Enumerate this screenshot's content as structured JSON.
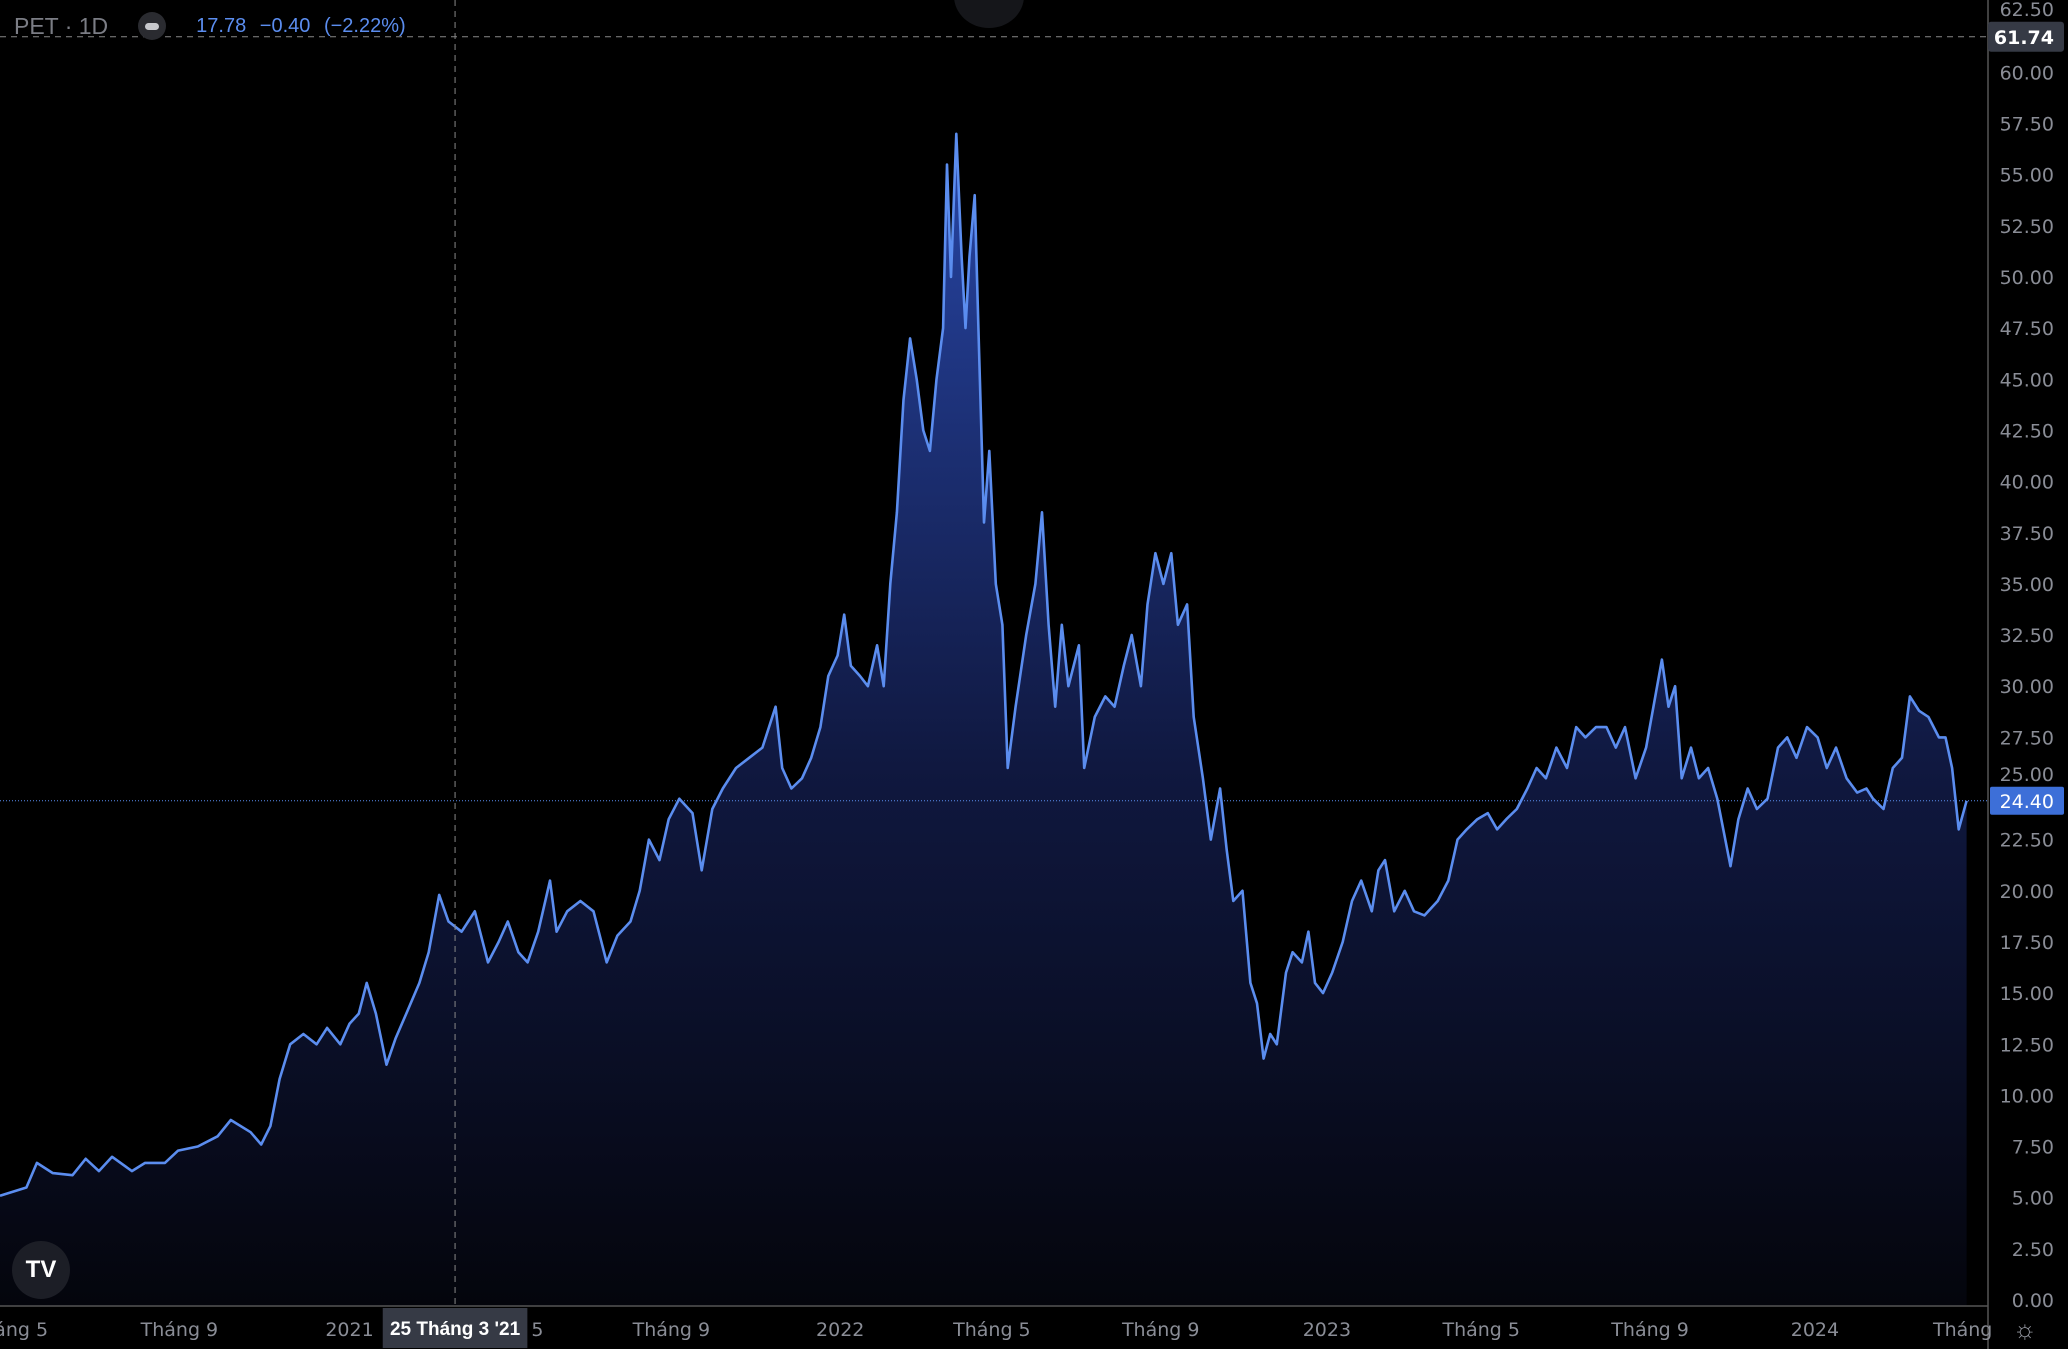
{
  "legend": {
    "symbol": "PET · 1D",
    "value": "17.78",
    "change": "−0.40",
    "change_pct": "(−2.22%)"
  },
  "crosshair": {
    "date_label": "25 Tháng 3 '21",
    "day": 345,
    "price_label": "61.74",
    "price": 61.74
  },
  "last_price": {
    "label": "24.40",
    "value": 24.4
  },
  "colors": {
    "line": "#5b8def",
    "fill_top": "#2a4ab0",
    "bg": "#000000",
    "axis_text": "#8a8d96",
    "last_price_bg": "#3d6fd8"
  },
  "icons": {
    "logo": "tradingview-logo-icon",
    "settings": "gear-icon"
  },
  "logo_text": "TV",
  "chart_data": {
    "type": "area",
    "title": "PET · 1D",
    "xlabel": "",
    "ylabel": "",
    "x_unit": "days since chart start (approx.)",
    "xlim": [
      0,
      1520
    ],
    "ylim": [
      0,
      63.5
    ],
    "grid": false,
    "y_ticks": [
      "0.00",
      "2.50",
      "5.00",
      "7.50",
      "10.00",
      "12.50",
      "15.00",
      "17.50",
      "20.00",
      "22.50",
      "25.00",
      "27.50",
      "30.00",
      "32.50",
      "35.00",
      "37.50",
      "40.00",
      "42.50",
      "45.00",
      "47.50",
      "50.00",
      "52.50",
      "55.00",
      "57.50",
      "60.00",
      "62.50"
    ],
    "x_ticks": [
      {
        "day": 16,
        "label": "áng 5"
      },
      {
        "day": 136,
        "label": "Tháng 9"
      },
      {
        "day": 265,
        "label": "2021"
      },
      {
        "day": 402,
        "label": "5"
      },
      {
        "day": 509,
        "label": "Tháng 9"
      },
      {
        "day": 637,
        "label": "2022"
      },
      {
        "day": 752,
        "label": "Tháng 5"
      },
      {
        "day": 880,
        "label": "Tháng 9"
      },
      {
        "day": 1006,
        "label": "2023"
      },
      {
        "day": 1123,
        "label": "Tháng 5"
      },
      {
        "day": 1251,
        "label": "Tháng 9"
      },
      {
        "day": 1376,
        "label": "2024"
      },
      {
        "day": 1488,
        "label": "Tháng"
      }
    ],
    "points": [
      [
        0,
        5.1
      ],
      [
        20,
        5.5
      ],
      [
        28,
        6.7
      ],
      [
        40,
        6.2
      ],
      [
        55,
        6.1
      ],
      [
        65,
        6.9
      ],
      [
        75,
        6.3
      ],
      [
        85,
        7.0
      ],
      [
        100,
        6.3
      ],
      [
        110,
        6.7
      ],
      [
        125,
        6.7
      ],
      [
        135,
        7.3
      ],
      [
        150,
        7.5
      ],
      [
        165,
        8.0
      ],
      [
        175,
        8.8
      ],
      [
        190,
        8.2
      ],
      [
        198,
        7.6
      ],
      [
        205,
        8.5
      ],
      [
        212,
        10.8
      ],
      [
        220,
        12.5
      ],
      [
        230,
        13.0
      ],
      [
        240,
        12.5
      ],
      [
        248,
        13.3
      ],
      [
        258,
        12.5
      ],
      [
        265,
        13.5
      ],
      [
        272,
        14.0
      ],
      [
        278,
        15.5
      ],
      [
        285,
        14.0
      ],
      [
        293,
        11.5
      ],
      [
        300,
        12.8
      ],
      [
        308,
        14.0
      ],
      [
        318,
        15.5
      ],
      [
        325,
        17.0
      ],
      [
        333,
        19.8
      ],
      [
        340,
        18.5
      ],
      [
        350,
        18.0
      ],
      [
        360,
        19.0
      ],
      [
        370,
        16.5
      ],
      [
        378,
        17.5
      ],
      [
        385,
        18.5
      ],
      [
        393,
        17.0
      ],
      [
        400,
        16.5
      ],
      [
        408,
        18.0
      ],
      [
        417,
        20.5
      ],
      [
        422,
        18.0
      ],
      [
        430,
        19.0
      ],
      [
        440,
        19.5
      ],
      [
        450,
        19.0
      ],
      [
        460,
        16.5
      ],
      [
        468,
        17.8
      ],
      [
        478,
        18.5
      ],
      [
        485,
        20.0
      ],
      [
        492,
        22.5
      ],
      [
        500,
        21.5
      ],
      [
        507,
        23.5
      ],
      [
        515,
        24.5
      ],
      [
        525,
        23.8
      ],
      [
        532,
        21.0
      ],
      [
        540,
        24.0
      ],
      [
        548,
        25.0
      ],
      [
        558,
        26.0
      ],
      [
        568,
        26.5
      ],
      [
        578,
        27.0
      ],
      [
        588,
        29.0
      ],
      [
        593,
        26.0
      ],
      [
        600,
        25.0
      ],
      [
        608,
        25.5
      ],
      [
        615,
        26.5
      ],
      [
        622,
        28.0
      ],
      [
        628,
        30.5
      ],
      [
        635,
        31.5
      ],
      [
        640,
        33.5
      ],
      [
        645,
        31.0
      ],
      [
        652,
        30.5
      ],
      [
        658,
        30.0
      ],
      [
        665,
        32.0
      ],
      [
        670,
        30.0
      ],
      [
        675,
        35.0
      ],
      [
        680,
        38.5
      ],
      [
        685,
        44.0
      ],
      [
        690,
        47.0
      ],
      [
        695,
        45.0
      ],
      [
        700,
        42.5
      ],
      [
        705,
        41.5
      ],
      [
        710,
        45.0
      ],
      [
        715,
        47.5
      ],
      [
        718,
        55.5
      ],
      [
        721,
        50.0
      ],
      [
        725,
        57.0
      ],
      [
        729,
        51.0
      ],
      [
        732,
        47.5
      ],
      [
        735,
        51.0
      ],
      [
        739,
        54.0
      ],
      [
        742,
        47.0
      ],
      [
        746,
        38.0
      ],
      [
        750,
        41.5
      ],
      [
        755,
        35.0
      ],
      [
        760,
        33.0
      ],
      [
        764,
        26.0
      ],
      [
        770,
        29.0
      ],
      [
        778,
        32.5
      ],
      [
        785,
        35.0
      ],
      [
        790,
        38.5
      ],
      [
        795,
        33.0
      ],
      [
        800,
        29.0
      ],
      [
        805,
        33.0
      ],
      [
        810,
        30.0
      ],
      [
        818,
        32.0
      ],
      [
        822,
        26.0
      ],
      [
        830,
        28.5
      ],
      [
        838,
        29.5
      ],
      [
        845,
        29.0
      ],
      [
        852,
        31.0
      ],
      [
        858,
        32.5
      ],
      [
        865,
        30.0
      ],
      [
        870,
        34.0
      ],
      [
        876,
        36.5
      ],
      [
        882,
        35.0
      ],
      [
        888,
        36.5
      ],
      [
        893,
        33.0
      ],
      [
        900,
        34.0
      ],
      [
        905,
        28.5
      ],
      [
        912,
        25.5
      ],
      [
        918,
        22.5
      ],
      [
        925,
        25.0
      ],
      [
        930,
        22.0
      ],
      [
        935,
        19.5
      ],
      [
        942,
        20.0
      ],
      [
        948,
        15.5
      ],
      [
        953,
        14.5
      ],
      [
        958,
        11.8
      ],
      [
        963,
        13.0
      ],
      [
        968,
        12.5
      ],
      [
        975,
        16.0
      ],
      [
        980,
        17.0
      ],
      [
        987,
        16.5
      ],
      [
        992,
        18.0
      ],
      [
        997,
        15.5
      ],
      [
        1003,
        15.0
      ],
      [
        1010,
        16.0
      ],
      [
        1018,
        17.5
      ],
      [
        1025,
        19.5
      ],
      [
        1032,
        20.5
      ],
      [
        1040,
        19.0
      ],
      [
        1045,
        21.0
      ],
      [
        1050,
        21.5
      ],
      [
        1057,
        19.0
      ],
      [
        1065,
        20.0
      ],
      [
        1072,
        19.0
      ],
      [
        1080,
        18.8
      ],
      [
        1090,
        19.5
      ],
      [
        1098,
        20.5
      ],
      [
        1105,
        22.5
      ],
      [
        1112,
        23.0
      ],
      [
        1120,
        23.5
      ],
      [
        1128,
        23.8
      ],
      [
        1135,
        23.0
      ],
      [
        1142,
        23.5
      ],
      [
        1150,
        24.0
      ],
      [
        1158,
        25.0
      ],
      [
        1165,
        26.0
      ],
      [
        1172,
        25.5
      ],
      [
        1180,
        27.0
      ],
      [
        1188,
        26.0
      ],
      [
        1195,
        28.0
      ],
      [
        1202,
        27.5
      ],
      [
        1210,
        28.0
      ],
      [
        1218,
        28.0
      ],
      [
        1225,
        27.0
      ],
      [
        1232,
        28.0
      ],
      [
        1240,
        25.5
      ],
      [
        1248,
        27.0
      ],
      [
        1255,
        29.5
      ],
      [
        1260,
        31.3
      ],
      [
        1265,
        29.0
      ],
      [
        1270,
        30.0
      ],
      [
        1275,
        25.5
      ],
      [
        1282,
        27.0
      ],
      [
        1288,
        25.5
      ],
      [
        1295,
        26.0
      ],
      [
        1302,
        24.5
      ],
      [
        1308,
        22.5
      ],
      [
        1312,
        21.2
      ],
      [
        1318,
        23.5
      ],
      [
        1325,
        25.0
      ],
      [
        1332,
        24.0
      ],
      [
        1340,
        24.5
      ],
      [
        1348,
        27.0
      ],
      [
        1355,
        27.5
      ],
      [
        1362,
        26.5
      ],
      [
        1370,
        28.0
      ],
      [
        1378,
        27.5
      ],
      [
        1385,
        26.0
      ],
      [
        1392,
        27.0
      ],
      [
        1400,
        25.5
      ],
      [
        1408,
        24.8
      ],
      [
        1415,
        25.0
      ],
      [
        1420,
        24.5
      ],
      [
        1428,
        24.0
      ],
      [
        1435,
        26.0
      ],
      [
        1442,
        26.5
      ],
      [
        1448,
        29.5
      ],
      [
        1455,
        28.8
      ],
      [
        1462,
        28.5
      ],
      [
        1470,
        27.5
      ],
      [
        1475,
        27.5
      ],
      [
        1480,
        26.0
      ],
      [
        1485,
        23.0
      ],
      [
        1491,
        24.4
      ]
    ]
  }
}
